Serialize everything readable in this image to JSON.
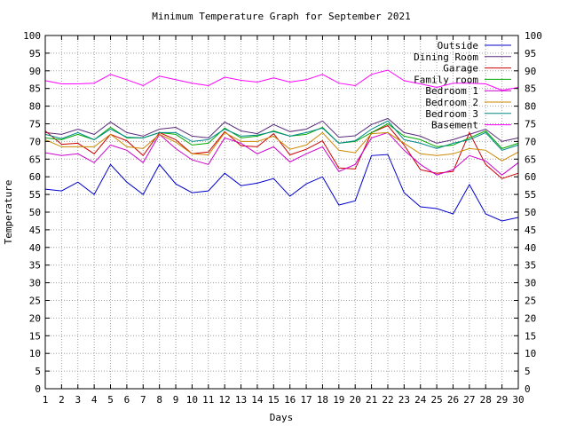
{
  "chart_data": {
    "type": "line",
    "title": "Minimum Temperature Graph for September 2021",
    "xlabel": "Days",
    "ylabel": "Temperature",
    "x": [
      1,
      2,
      3,
      4,
      5,
      6,
      7,
      8,
      9,
      10,
      11,
      12,
      13,
      14,
      15,
      16,
      17,
      18,
      19,
      20,
      21,
      22,
      23,
      24,
      25,
      26,
      27,
      28,
      29,
      30
    ],
    "xlim": [
      1,
      30
    ],
    "ylim": [
      0,
      100
    ],
    "y_ticks": [
      0,
      5,
      10,
      15,
      20,
      25,
      30,
      35,
      40,
      45,
      50,
      55,
      60,
      65,
      70,
      75,
      80,
      85,
      90,
      95,
      100
    ],
    "grid": true,
    "legend_position": "top-right",
    "right_axis_mirrors_left": true,
    "series": [
      {
        "name": "Outside",
        "color": "#0000cc",
        "values": [
          56.5,
          56,
          58.5,
          55,
          63.5,
          58.5,
          55,
          63.5,
          58,
          55.5,
          56,
          61,
          57.5,
          58.2,
          59.5,
          54.5,
          58,
          60,
          52,
          53.2,
          66,
          66.3,
          55.5,
          51.5,
          51,
          49.5,
          57.8,
          49.5,
          47.5,
          48.5
        ]
      },
      {
        "name": "Dining Room",
        "color": "#5a2a7a",
        "values": [
          72.5,
          72,
          73.5,
          72,
          75.5,
          72.5,
          71.5,
          73.5,
          74,
          71.5,
          71,
          75.5,
          73,
          72.2,
          74.8,
          72.8,
          73.5,
          75.8,
          71.2,
          71.6,
          74.8,
          76.5,
          72.5,
          71.5,
          69.5,
          70.5,
          72,
          73.5,
          70,
          71
        ]
      },
      {
        "name": "Garage",
        "color": "#cc0000",
        "values": [
          73,
          69.2,
          69.5,
          66.5,
          72,
          70.2,
          66,
          72.5,
          70.5,
          66.5,
          67,
          72.8,
          68.8,
          68.5,
          72.2,
          66.2,
          67.8,
          70.2,
          62.5,
          62.2,
          72.5,
          74.5,
          69,
          62,
          61,
          61.5,
          72.5,
          63.5,
          59.5,
          61
        ]
      },
      {
        "name": "Family room",
        "color": "#00aa00",
        "values": [
          71,
          70.5,
          72,
          70.5,
          74,
          71,
          71,
          72.5,
          72,
          69,
          69.5,
          73.8,
          71,
          71.5,
          73,
          71.5,
          72,
          74,
          69.5,
          70,
          72.5,
          75,
          71.5,
          70.5,
          68.5,
          69,
          71,
          73,
          68,
          69.5
        ]
      },
      {
        "name": "Bedroom 1",
        "color": "#cc00cc",
        "values": [
          66.8,
          66,
          66.5,
          64,
          69,
          67.5,
          64,
          72,
          68,
          64.8,
          63.5,
          71,
          69.5,
          66.5,
          68.5,
          64.2,
          66.5,
          68.5,
          61.5,
          63.5,
          71,
          72.5,
          67.5,
          63.5,
          60.5,
          62,
          66,
          64.5,
          60.5,
          64
        ]
      },
      {
        "name": "Bedroom 2",
        "color": "#cc8800",
        "values": [
          70.5,
          68.5,
          68.5,
          68.5,
          72,
          68.5,
          68,
          72,
          69.8,
          66.5,
          66.2,
          72.5,
          70,
          70,
          71.5,
          67.8,
          69,
          72.5,
          67.5,
          66.8,
          72.2,
          72.5,
          69.5,
          66.5,
          66,
          66.5,
          68,
          67.5,
          64.5,
          67
        ]
      },
      {
        "name": "Bedroom 3",
        "color": "#008888",
        "values": [
          72,
          70.8,
          72.5,
          70.5,
          73.5,
          71.2,
          71,
          72.5,
          72.5,
          70,
          70.5,
          73.5,
          71.5,
          71.8,
          72.8,
          71.5,
          72.5,
          73.8,
          69.5,
          70.2,
          73.5,
          75.8,
          70.5,
          69.5,
          68,
          69.5,
          70.5,
          72.5,
          67.5,
          69
        ]
      },
      {
        "name": "Basement",
        "color": "#ff00ff",
        "values": [
          87.2,
          86.3,
          86.3,
          86.5,
          89,
          87.5,
          85.8,
          88.5,
          87.5,
          86.5,
          85.8,
          88.2,
          87.3,
          86.8,
          88,
          86.8,
          87.5,
          89,
          86.5,
          85.8,
          89,
          90.2,
          87.2,
          86.3,
          85.3,
          86.5,
          86.5,
          86.3,
          84.5,
          85.3
        ]
      }
    ]
  }
}
